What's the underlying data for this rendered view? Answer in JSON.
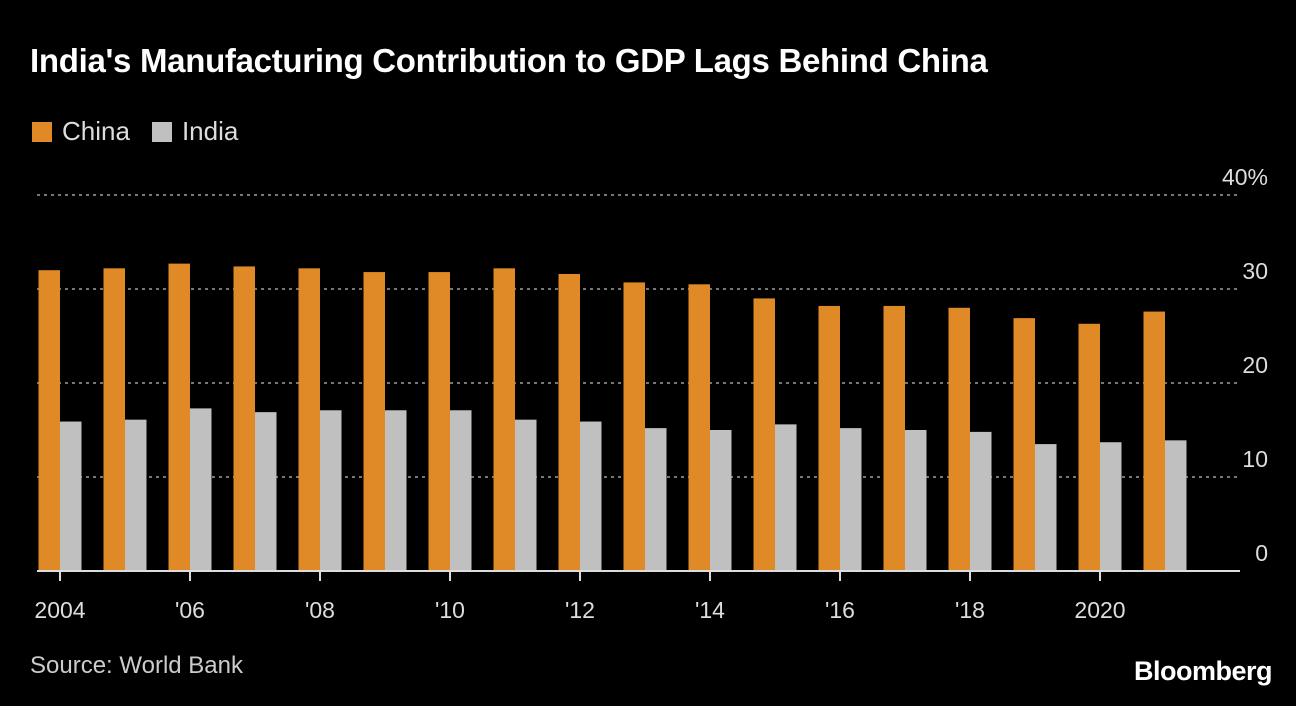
{
  "chart_data": {
    "type": "bar",
    "title": "India's Manufacturing Contribution to GDP Lags Behind China",
    "categories": [
      "2004",
      "2005",
      "2006",
      "2007",
      "2008",
      "2009",
      "2010",
      "2011",
      "2012",
      "2013",
      "2014",
      "2015",
      "2016",
      "2017",
      "2018",
      "2019",
      "2020",
      "2021"
    ],
    "x_tick_labels": [
      {
        "category": "2004",
        "label": "2004"
      },
      {
        "category": "2006",
        "label": "'06"
      },
      {
        "category": "2008",
        "label": "'08"
      },
      {
        "category": "2010",
        "label": "'10"
      },
      {
        "category": "2012",
        "label": "'12"
      },
      {
        "category": "2014",
        "label": "'14"
      },
      {
        "category": "2016",
        "label": "'16"
      },
      {
        "category": "2018",
        "label": "'18"
      },
      {
        "category": "2020",
        "label": "2020"
      }
    ],
    "series": [
      {
        "name": "China",
        "color": "#e08a27",
        "values": [
          32.0,
          32.2,
          32.7,
          32.4,
          32.2,
          31.8,
          31.8,
          32.2,
          31.6,
          30.7,
          30.5,
          29.0,
          28.2,
          28.2,
          28.0,
          26.9,
          26.3,
          27.6
        ]
      },
      {
        "name": "India",
        "color": "#c0c0c0",
        "values": [
          15.9,
          16.1,
          17.3,
          16.9,
          17.1,
          17.1,
          17.1,
          16.1,
          15.9,
          15.2,
          15.0,
          15.6,
          15.2,
          15.0,
          14.8,
          13.5,
          13.7,
          13.9
        ]
      }
    ],
    "ylim": [
      0,
      40
    ],
    "y_ticks": [
      {
        "value": 0,
        "label": "0"
      },
      {
        "value": 10,
        "label": "10"
      },
      {
        "value": 20,
        "label": "20"
      },
      {
        "value": 30,
        "label": "30"
      },
      {
        "value": 40,
        "label": "40%"
      }
    ],
    "grid": true,
    "legend_placement": "top-left",
    "xlabel": "",
    "ylabel": ""
  },
  "source": "Source: World Bank",
  "brand": "Bloomberg"
}
